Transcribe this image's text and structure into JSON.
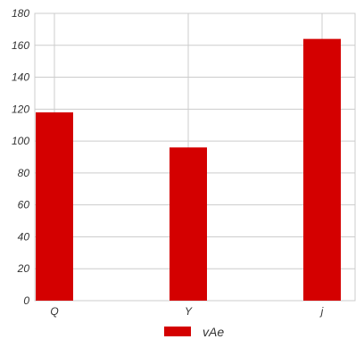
{
  "chart_data": {
    "type": "bar",
    "categories": [
      "Q",
      "Y",
      "j"
    ],
    "series": [
      {
        "name": "vAe",
        "values": [
          118,
          96,
          164
        ],
        "color": "#d40000"
      }
    ],
    "ylim": [
      0,
      180
    ],
    "yticks": [
      0,
      20,
      40,
      60,
      80,
      100,
      120,
      140,
      160,
      180
    ],
    "grid": true,
    "legend": "bottom-center"
  }
}
